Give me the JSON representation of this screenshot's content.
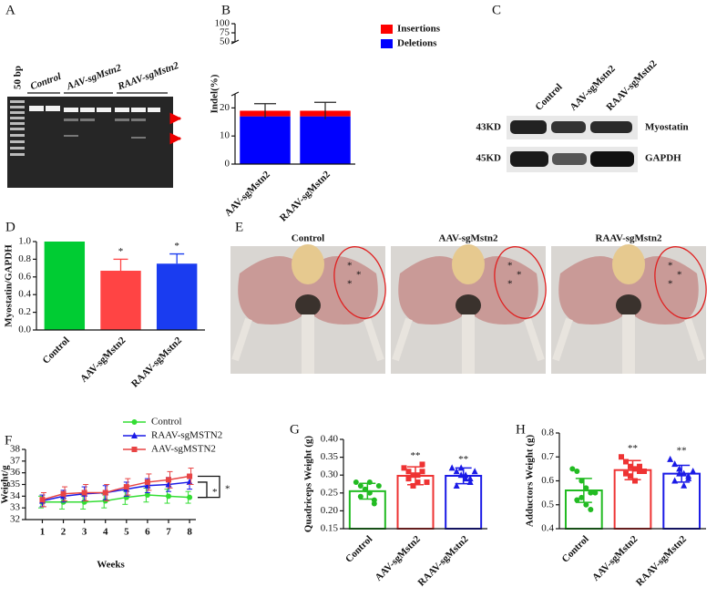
{
  "panel_labels": [
    "A",
    "B",
    "C",
    "D",
    "E",
    "F",
    "G",
    "H"
  ],
  "gel": {
    "ladder": "50 bp",
    "lanes": [
      "Control",
      "AAV-sgMstn2",
      "RAAV-sgMstn2"
    ]
  },
  "blot": {
    "lanes": [
      "Control",
      "AAV-sgMstn2",
      "RAAV-sgMstn2"
    ],
    "rows": [
      {
        "size": "43KD",
        "protein": "Myostatin"
      },
      {
        "size": "45KD",
        "protein": "GAPDH"
      }
    ]
  },
  "photos": [
    {
      "label": "Control",
      "asterisks": [
        "*",
        "*",
        "*"
      ]
    },
    {
      "label": "AAV-sgMstn2",
      "asterisks": [
        "*",
        "*",
        "*"
      ]
    },
    {
      "label": "RAAV-sgMstn2",
      "asterisks": [
        "*",
        "*",
        "*"
      ]
    }
  ],
  "chart_data": [
    {
      "type": "stacked-bar",
      "ylabel": "Indel(%)",
      "categories": [
        "AAV-sgMstn2",
        "RAAV-sgMstn2"
      ],
      "series": [
        {
          "name": "Deletions",
          "color": "#0000ff",
          "values": [
            17,
            17
          ]
        },
        {
          "name": "Insertions",
          "color": "#ff0000",
          "values": [
            2,
            2
          ],
          "errors": [
            2.5,
            3
          ]
        }
      ],
      "ylim": [
        0,
        100
      ],
      "ybreak": [
        25,
        50
      ],
      "yticks": [
        0,
        10,
        20,
        50,
        75,
        100
      ],
      "legend": "upper right"
    },
    {
      "type": "bar",
      "ylabel": "Myostatin/GAPDH",
      "categories": [
        "Control",
        "AAV-sgMstn2",
        "RAAV-sgMstn2"
      ],
      "values": [
        1.0,
        0.67,
        0.75
      ],
      "errors": [
        null,
        0.13,
        0.11
      ],
      "colors": [
        "#00cc33",
        "#ff4444",
        "#1a3cf0"
      ],
      "annotations": [
        null,
        "*",
        "*"
      ],
      "ylim": [
        0,
        1.0
      ],
      "yticks": [
        {
          "value": 0,
          "label": "0.0"
        },
        0.2,
        0.4,
        0.6,
        0.8,
        {
          "value": 1,
          "label": "1.0"
        }
      ]
    },
    {
      "type": "line",
      "xlabel": "Weeks",
      "ylabel": "Weight/g",
      "x": [
        1,
        2,
        3,
        4,
        5,
        6,
        7,
        8
      ],
      "series": [
        {
          "name": "Control",
          "color": "#33dd33",
          "marker": "circle",
          "values": [
            33.5,
            33.5,
            33.5,
            33.6,
            33.9,
            34.1,
            34.0,
            33.9
          ],
          "errors": [
            0.5,
            0.6,
            0.6,
            0.6,
            0.6,
            0.6,
            0.6,
            0.5
          ]
        },
        {
          "name": "RAAV-sgMSTN2",
          "color": "#1a1ae6",
          "marker": "triangle",
          "values": [
            33.6,
            34.0,
            34.2,
            34.3,
            34.6,
            34.9,
            35.0,
            35.2
          ],
          "errors": [
            0.5,
            0.5,
            0.6,
            0.6,
            0.6,
            0.6,
            0.6,
            0.6
          ]
        },
        {
          "name": "AAV-sgMSTN2",
          "color": "#e84444",
          "marker": "square",
          "values": [
            33.7,
            34.2,
            34.3,
            34.3,
            34.8,
            35.2,
            35.4,
            35.7
          ],
          "errors": [
            0.6,
            0.6,
            0.7,
            0.7,
            0.7,
            0.7,
            0.7,
            0.7
          ]
        }
      ],
      "annotations": [
        "*",
        "*"
      ],
      "xlim": [
        0.2,
        8.3
      ],
      "ylim": [
        32,
        38
      ],
      "xticks": [
        1,
        2,
        3,
        4,
        5,
        6,
        7,
        8
      ],
      "yticks": [
        32,
        33,
        34,
        35,
        36,
        37,
        38
      ],
      "legend": "upper center"
    },
    {
      "type": "dot-bar",
      "ylabel": "Quadriceps Weight (g)",
      "categories": [
        "Control",
        "AAV-sgMstn2",
        "RAAV-sgMstn2"
      ],
      "values": [
        0.255,
        0.298,
        0.298
      ],
      "errors": [
        0.022,
        0.025,
        0.022
      ],
      "colors": [
        "#22bb22",
        "#ee3333",
        "#1a1ae6"
      ],
      "markers": [
        "circle",
        "square",
        "triangle"
      ],
      "points": [
        [
          0.28,
          0.27,
          0.26,
          0.25,
          0.23,
          0.24,
          0.26,
          0.28,
          0.22,
          0.27
        ],
        [
          0.32,
          0.31,
          0.3,
          0.28,
          0.33,
          0.29,
          0.27,
          0.3,
          0.31,
          0.28
        ],
        [
          0.32,
          0.31,
          0.3,
          0.29,
          0.28,
          0.27,
          0.32,
          0.3,
          0.29,
          0.31
        ]
      ],
      "annotations": [
        null,
        "**",
        "**"
      ],
      "ylim": [
        0.15,
        0.4
      ],
      "yticks": [
        0.15,
        {
          "value": 0.2,
          "label": "0.20"
        },
        0.25,
        {
          "value": 0.3,
          "label": "0.30"
        },
        0.35,
        {
          "value": 0.4,
          "label": "0.40"
        }
      ]
    },
    {
      "type": "dot-bar",
      "ylabel": "Adductors Weight (g)",
      "categories": [
        "Control",
        "AAV-sgMstn2",
        "RAAV-sgMstn2"
      ],
      "values": [
        0.56,
        0.645,
        0.63
      ],
      "errors": [
        0.05,
        0.04,
        0.035
      ],
      "colors": [
        "#22bb22",
        "#ee3333",
        "#1a1ae6"
      ],
      "markers": [
        "circle",
        "square",
        "triangle"
      ],
      "points": [
        [
          0.65,
          0.64,
          0.6,
          0.57,
          0.55,
          0.52,
          0.53,
          0.5,
          0.48,
          0.55
        ],
        [
          0.7,
          0.68,
          0.66,
          0.65,
          0.64,
          0.63,
          0.62,
          0.6,
          0.66,
          0.64
        ],
        [
          0.69,
          0.67,
          0.65,
          0.63,
          0.62,
          0.6,
          0.63,
          0.58,
          0.61,
          0.64
        ]
      ],
      "annotations": [
        null,
        "**",
        "**"
      ],
      "ylim": [
        0.4,
        0.8
      ],
      "yticks": [
        0.4,
        0.5,
        0.6,
        0.7,
        0.8
      ]
    }
  ]
}
